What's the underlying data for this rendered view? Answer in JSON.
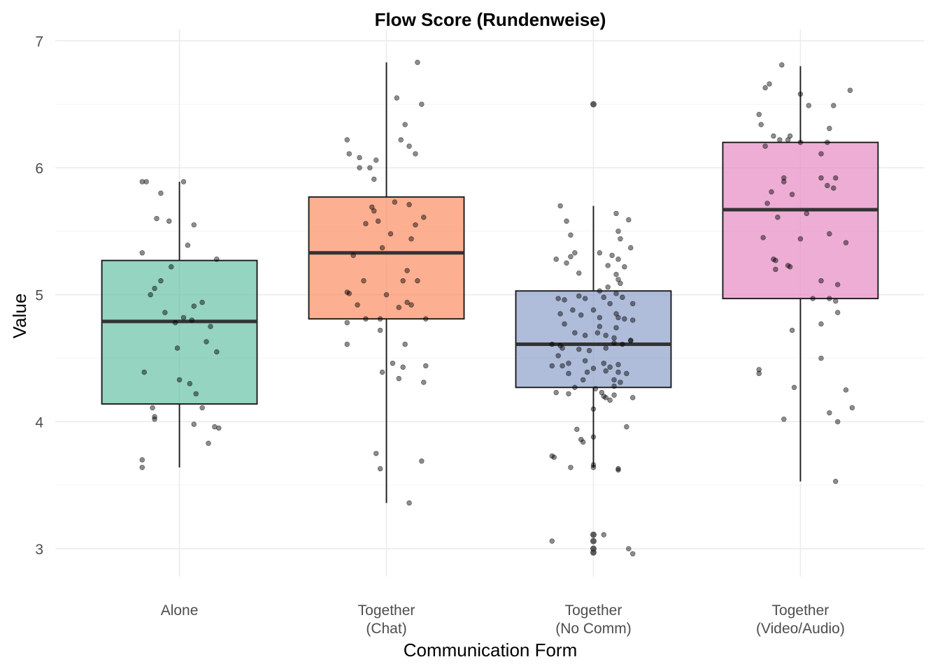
{
  "chart_data": {
    "type": "box",
    "title": "Flow Score (Rundenweise)",
    "xlabel": "Communication Form",
    "ylabel": "Value",
    "ylim": [
      2.78,
      7.09
    ],
    "yticks": [
      3,
      4,
      5,
      6,
      7
    ],
    "grid": true,
    "legend": "none",
    "categories": [
      {
        "label_lines": [
          "Alone"
        ],
        "color": "#66c2a5"
      },
      {
        "label_lines": [
          "Together",
          "(Chat)"
        ],
        "color": "#fc8d62"
      },
      {
        "label_lines": [
          "Together",
          "(No Comm)"
        ],
        "color": "#8da0cb"
      },
      {
        "label_lines": [
          "Together",
          "(Video/Audio)"
        ],
        "color": "#e78ac3"
      }
    ],
    "boxes": [
      {
        "q1": 4.14,
        "median": 4.79,
        "q3": 5.27,
        "whisker_low": 3.64,
        "whisker_high": 5.89,
        "outliers": []
      },
      {
        "q1": 4.81,
        "median": 5.33,
        "q3": 5.77,
        "whisker_low": 3.36,
        "whisker_high": 6.83,
        "outliers": []
      },
      {
        "q1": 4.27,
        "median": 4.61,
        "q3": 5.03,
        "whisker_low": 3.64,
        "whisker_high": 5.7,
        "outliers": [
          6.5,
          3.11,
          3.06,
          3.0,
          2.97
        ]
      },
      {
        "q1": 4.97,
        "median": 5.67,
        "q3": 6.2,
        "whisker_low": 3.53,
        "whisker_high": 6.8,
        "outliers": []
      }
    ],
    "points": [
      [
        [
          -0.18,
          5.89
        ],
        [
          -0.16,
          5.89
        ],
        [
          -0.09,
          5.8
        ],
        [
          0.02,
          5.89
        ],
        [
          -0.11,
          5.6
        ],
        [
          -0.05,
          5.58
        ],
        [
          0.07,
          5.55
        ],
        [
          0.04,
          5.39
        ],
        [
          0.18,
          5.28
        ],
        [
          -0.18,
          5.33
        ],
        [
          -0.04,
          5.22
        ],
        [
          -0.09,
          5.11
        ],
        [
          -0.12,
          5.05
        ],
        [
          -0.14,
          5.0
        ],
        [
          -0.07,
          4.86
        ],
        [
          0.02,
          4.82
        ],
        [
          0.11,
          4.94
        ],
        [
          0.07,
          4.91
        ],
        [
          -0.02,
          4.78
        ],
        [
          0.06,
          4.8
        ],
        [
          0.15,
          4.75
        ],
        [
          0.13,
          4.63
        ],
        [
          0.18,
          4.55
        ],
        [
          -0.01,
          4.58
        ],
        [
          -0.17,
          4.39
        ],
        [
          0.0,
          4.33
        ],
        [
          0.05,
          4.3
        ],
        [
          0.08,
          4.22
        ],
        [
          0.11,
          4.11
        ],
        [
          -0.13,
          4.11
        ],
        [
          -0.12,
          4.04
        ],
        [
          -0.12,
          4.02
        ],
        [
          0.07,
          3.98
        ],
        [
          0.17,
          3.96
        ],
        [
          0.19,
          3.95
        ],
        [
          0.14,
          3.83
        ],
        [
          -0.18,
          3.7
        ],
        [
          -0.18,
          3.64
        ]
      ],
      [
        [
          -0.19,
          6.22
        ],
        [
          -0.18,
          6.11
        ],
        [
          -0.13,
          6.08
        ],
        [
          -0.08,
          6.0
        ],
        [
          -0.05,
          6.06
        ],
        [
          -0.06,
          5.91
        ],
        [
          0.05,
          6.55
        ],
        [
          0.15,
          6.83
        ],
        [
          0.17,
          6.5
        ],
        [
          0.09,
          6.34
        ],
        [
          0.07,
          6.22
        ],
        [
          0.11,
          6.17
        ],
        [
          0.14,
          6.11
        ],
        [
          -0.13,
          6.0
        ],
        [
          -0.07,
          5.69
        ],
        [
          -0.06,
          5.66
        ],
        [
          -0.04,
          5.58
        ],
        [
          0.04,
          5.73
        ],
        [
          0.11,
          5.71
        ],
        [
          0.18,
          5.61
        ],
        [
          0.14,
          5.55
        ],
        [
          -0.1,
          5.56
        ],
        [
          0.02,
          5.48
        ],
        [
          0.12,
          5.44
        ],
        [
          -0.02,
          5.37
        ],
        [
          -0.16,
          5.31
        ],
        [
          0.1,
          5.19
        ],
        [
          0.08,
          5.11
        ],
        [
          0.15,
          5.11
        ],
        [
          -0.11,
          5.11
        ],
        [
          -0.19,
          5.02
        ],
        [
          -0.18,
          5.01
        ],
        [
          0.0,
          5.0
        ],
        [
          0.1,
          4.94
        ],
        [
          0.12,
          4.92
        ],
        [
          -0.14,
          4.92
        ],
        [
          0.06,
          4.9
        ],
        [
          -0.03,
          4.81
        ],
        [
          -0.1,
          4.81
        ],
        [
          0.19,
          4.81
        ],
        [
          -0.19,
          4.78
        ],
        [
          -0.03,
          4.72
        ],
        [
          -0.19,
          4.61
        ],
        [
          0.09,
          4.61
        ],
        [
          0.03,
          4.46
        ],
        [
          0.08,
          4.43
        ],
        [
          0.19,
          4.44
        ],
        [
          -0.02,
          4.39
        ],
        [
          0.06,
          4.34
        ],
        [
          0.18,
          4.31
        ],
        [
          -0.05,
          3.75
        ],
        [
          -0.03,
          3.63
        ],
        [
          0.17,
          3.69
        ],
        [
          0.11,
          3.36
        ]
      ],
      [
        [
          -0.16,
          5.7
        ],
        [
          -0.13,
          5.58
        ],
        [
          -0.11,
          5.47
        ],
        [
          -0.09,
          5.33
        ],
        [
          -0.11,
          5.3
        ],
        [
          -0.18,
          5.28
        ],
        [
          -0.13,
          5.25
        ],
        [
          -0.07,
          5.17
        ],
        [
          0.11,
          5.64
        ],
        [
          0.17,
          5.59
        ],
        [
          0.12,
          5.5
        ],
        [
          0.13,
          5.44
        ],
        [
          0.18,
          5.37
        ],
        [
          0.03,
          5.33
        ],
        [
          0.09,
          5.31
        ],
        [
          0.12,
          5.28
        ],
        [
          0.07,
          5.23
        ],
        [
          0.15,
          5.22
        ],
        [
          0.11,
          5.16
        ],
        [
          0.12,
          5.12
        ],
        [
          0.13,
          5.09
        ],
        [
          0.07,
          5.06
        ],
        [
          0.03,
          5.03
        ],
        [
          0.11,
          5.01
        ],
        [
          -0.07,
          4.99
        ],
        [
          -0.17,
          4.97
        ],
        [
          -0.14,
          4.96
        ],
        [
          0.05,
          4.98
        ],
        [
          0.14,
          4.98
        ],
        [
          -0.04,
          4.97
        ],
        [
          -0.1,
          4.88
        ],
        [
          0.0,
          4.88
        ],
        [
          0.08,
          4.93
        ],
        [
          0.19,
          4.93
        ],
        [
          -0.16,
          4.85
        ],
        [
          -0.06,
          4.84
        ],
        [
          0.11,
          4.85
        ],
        [
          0.03,
          4.82
        ],
        [
          0.12,
          4.82
        ],
        [
          0.15,
          4.81
        ],
        [
          0.19,
          4.8
        ],
        [
          -0.14,
          4.77
        ],
        [
          -0.09,
          4.7
        ],
        [
          0.03,
          4.75
        ],
        [
          0.11,
          4.74
        ],
        [
          0.02,
          4.7
        ],
        [
          -0.04,
          4.68
        ],
        [
          0.06,
          4.68
        ],
        [
          0.1,
          4.66
        ],
        [
          0.18,
          4.64
        ],
        [
          -0.16,
          4.6
        ],
        [
          -0.2,
          4.61
        ],
        [
          -0.15,
          4.58
        ],
        [
          -0.07,
          4.57
        ],
        [
          -0.02,
          4.56
        ],
        [
          0.06,
          4.58
        ],
        [
          0.1,
          4.62
        ],
        [
          0.18,
          4.64
        ],
        [
          0.14,
          4.61
        ],
        [
          -0.17,
          4.52
        ],
        [
          -0.04,
          4.48
        ],
        [
          -0.12,
          4.46
        ],
        [
          0.05,
          4.46
        ],
        [
          0.08,
          4.43
        ],
        [
          0.12,
          4.45
        ],
        [
          -0.2,
          4.44
        ],
        [
          -0.15,
          4.44
        ],
        [
          -0.12,
          4.38
        ],
        [
          -0.03,
          4.39
        ],
        [
          0.0,
          4.42
        ],
        [
          0.06,
          4.4
        ],
        [
          0.12,
          4.39
        ],
        [
          0.16,
          4.38
        ],
        [
          -0.05,
          4.33
        ],
        [
          0.1,
          4.33
        ],
        [
          0.13,
          4.31
        ],
        [
          -0.09,
          4.27
        ],
        [
          0.01,
          4.26
        ],
        [
          0.1,
          4.28
        ],
        [
          0.04,
          4.23
        ],
        [
          -0.18,
          4.23
        ],
        [
          -0.12,
          4.22
        ],
        [
          0.06,
          4.19
        ],
        [
          0.08,
          4.17
        ],
        [
          0.05,
          4.2
        ],
        [
          0.1,
          4.21
        ],
        [
          0.19,
          4.19
        ],
        [
          0.0,
          4.1
        ],
        [
          0.16,
          3.96
        ],
        [
          -0.08,
          3.94
        ],
        [
          0.0,
          3.88
        ],
        [
          -0.06,
          3.86
        ],
        [
          -0.05,
          3.84
        ],
        [
          -0.2,
          3.73
        ],
        [
          -0.19,
          3.72
        ],
        [
          -0.11,
          3.64
        ],
        [
          0.0,
          3.66
        ],
        [
          0.0,
          3.64
        ],
        [
          0.12,
          3.62
        ],
        [
          0.12,
          3.63
        ],
        [
          0.05,
          3.11
        ],
        [
          -0.2,
          3.06
        ],
        [
          0.17,
          3.0
        ],
        [
          0.19,
          2.96
        ]
      ],
      [
        [
          -0.2,
          6.42
        ],
        [
          -0.17,
          6.63
        ],
        [
          -0.15,
          6.66
        ],
        [
          -0.19,
          6.34
        ],
        [
          -0.09,
          6.81
        ],
        [
          -0.13,
          6.25
        ],
        [
          0.0,
          6.58
        ],
        [
          0.04,
          6.49
        ],
        [
          0.16,
          6.49
        ],
        [
          0.24,
          6.61
        ],
        [
          0.14,
          6.31
        ],
        [
          -0.05,
          6.25
        ],
        [
          -0.06,
          6.22
        ],
        [
          -0.1,
          6.22
        ],
        [
          0.0,
          6.2
        ],
        [
          0.13,
          6.2
        ],
        [
          -0.17,
          6.17
        ],
        [
          0.1,
          6.11
        ],
        [
          -0.08,
          5.92
        ],
        [
          -0.08,
          5.89
        ],
        [
          0.1,
          5.92
        ],
        [
          0.17,
          5.92
        ],
        [
          0.13,
          5.86
        ],
        [
          0.16,
          5.84
        ],
        [
          -0.14,
          5.81
        ],
        [
          -0.04,
          5.79
        ],
        [
          -0.16,
          5.72
        ],
        [
          -0.11,
          5.61
        ],
        [
          0.03,
          5.64
        ],
        [
          0.14,
          5.48
        ],
        [
          -0.18,
          5.45
        ],
        [
          0.0,
          5.44
        ],
        [
          0.22,
          5.41
        ],
        [
          -0.13,
          5.28
        ],
        [
          -0.12,
          5.27
        ],
        [
          -0.05,
          5.22
        ],
        [
          -0.06,
          5.23
        ],
        [
          -0.12,
          5.2
        ],
        [
          0.1,
          5.11
        ],
        [
          0.18,
          5.08
        ],
        [
          0.06,
          4.97
        ],
        [
          0.14,
          4.97
        ],
        [
          0.17,
          4.95
        ],
        [
          0.18,
          4.86
        ],
        [
          0.1,
          4.77
        ],
        [
          -0.04,
          4.72
        ],
        [
          -0.2,
          4.41
        ],
        [
          -0.2,
          4.38
        ],
        [
          0.1,
          4.5
        ],
        [
          -0.03,
          4.27
        ],
        [
          0.22,
          4.25
        ],
        [
          0.25,
          4.11
        ],
        [
          0.14,
          4.07
        ],
        [
          0.18,
          4.0
        ],
        [
          -0.08,
          4.02
        ],
        [
          0.17,
          3.53
        ]
      ]
    ]
  }
}
